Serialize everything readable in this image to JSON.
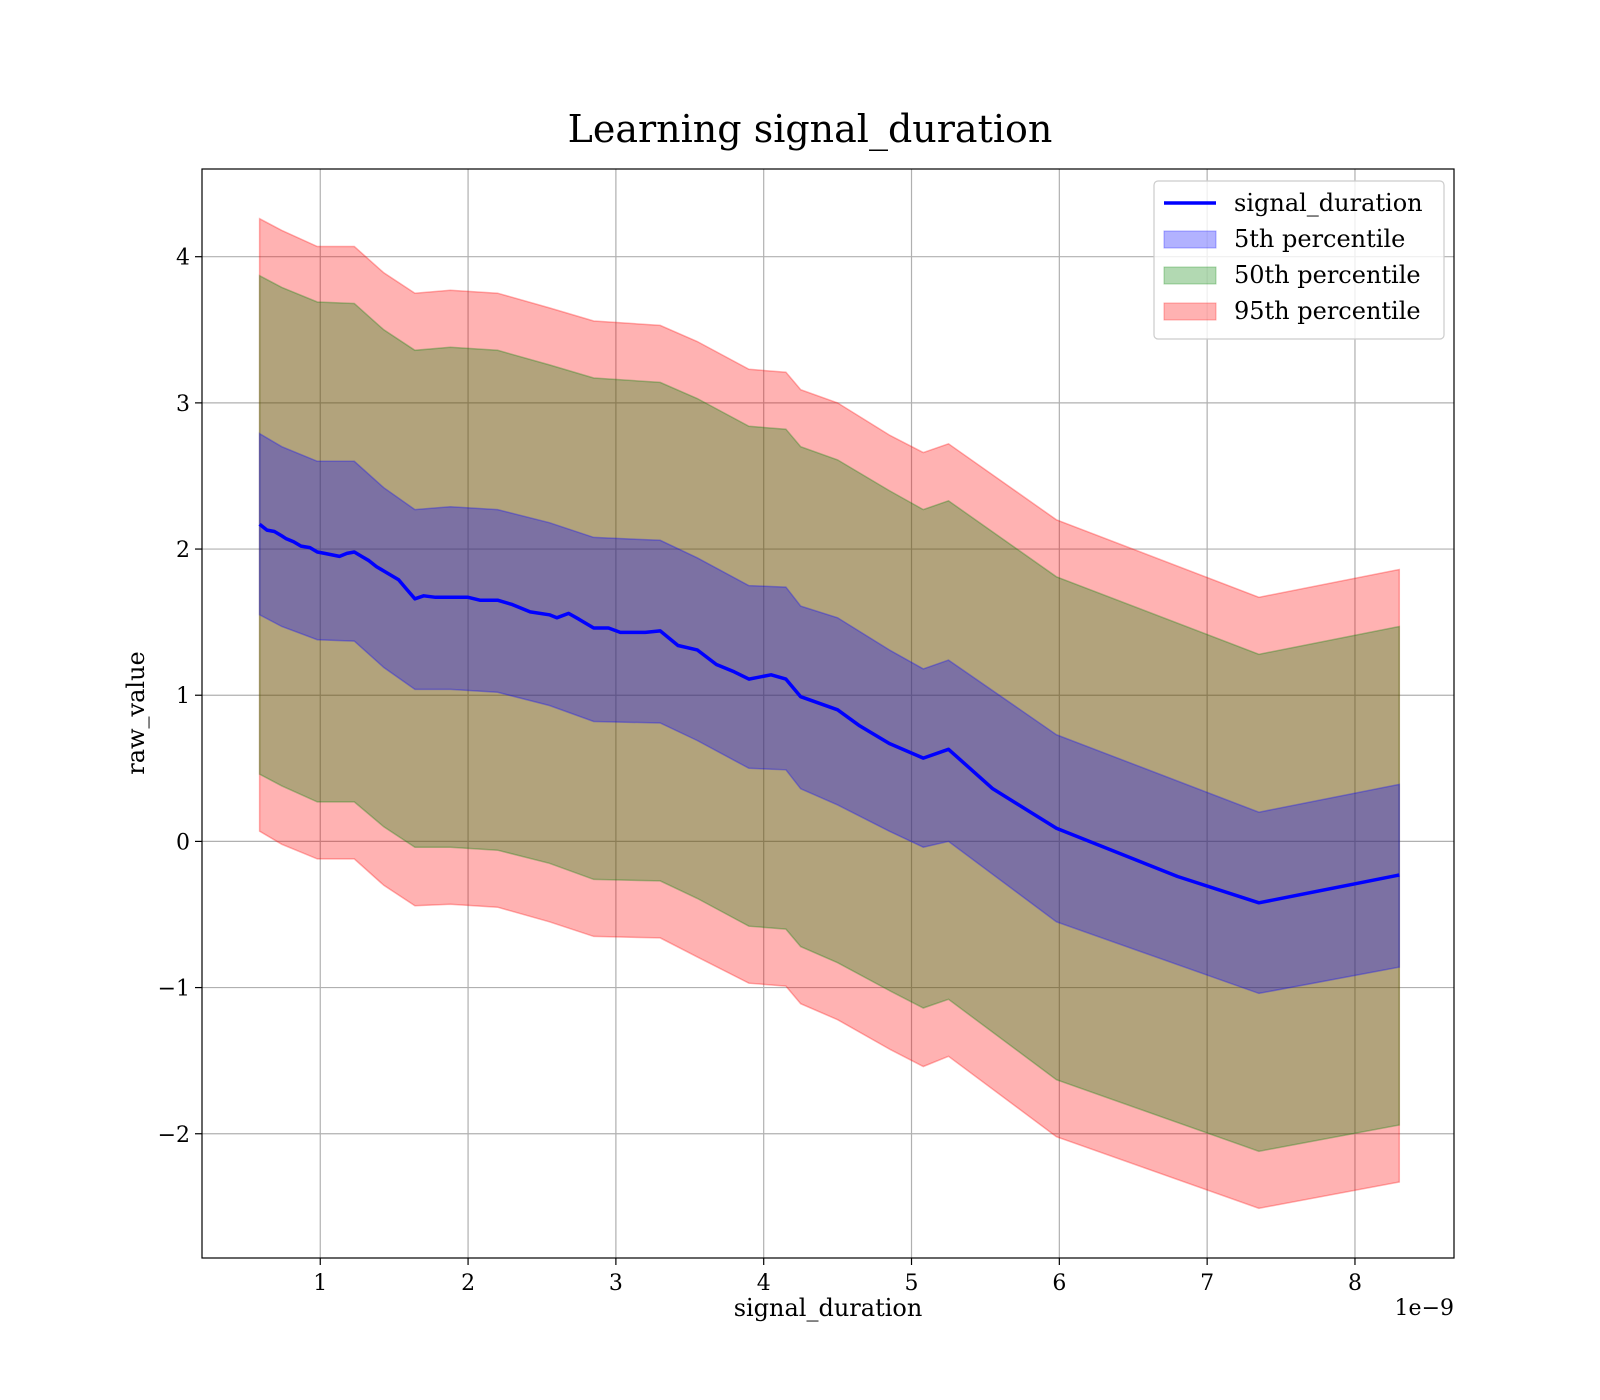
{
  "chart_data": {
    "type": "line",
    "title": "Learning signal_duration",
    "xlabel": "signal_duration",
    "ylabel": "raw_value",
    "x_offset_text": "1e−9",
    "xlim": [
      0.2,
      8.67
    ],
    "ylim": [
      -2.85,
      4.6
    ],
    "x_ticks": [
      1,
      2,
      3,
      4,
      5,
      6,
      7,
      8
    ],
    "y_ticks": [
      -2,
      -1,
      0,
      1,
      2,
      3,
      4
    ],
    "y_tick_labels": [
      "−2",
      "−1",
      "0",
      "1",
      "2",
      "3",
      "4"
    ],
    "grid": true,
    "legend_position": "top-right",
    "series": [
      {
        "name": "signal_duration",
        "kind": "line",
        "color": "#0000ff",
        "x": [
          0.59,
          0.64,
          0.69,
          0.74,
          0.77,
          0.82,
          0.87,
          0.93,
          0.98,
          1.03,
          1.08,
          1.13,
          1.18,
          1.23,
          1.28,
          1.33,
          1.38,
          1.43,
          1.48,
          1.53,
          1.58,
          1.64,
          1.7,
          1.78,
          1.88,
          2.0,
          2.08,
          2.13,
          2.2,
          2.3,
          2.42,
          2.55,
          2.6,
          2.68,
          2.75,
          2.85,
          2.95,
          3.03,
          3.12,
          3.2,
          3.3,
          3.42,
          3.55,
          3.68,
          3.8,
          3.9,
          3.95,
          4.05,
          4.15,
          4.25,
          4.5,
          4.65,
          4.85,
          5.08,
          5.25,
          5.55,
          5.98,
          6.8,
          7.35,
          8.0,
          8.3
        ],
        "values": [
          2.17,
          2.13,
          2.12,
          2.09,
          2.07,
          2.05,
          2.02,
          2.01,
          1.98,
          1.97,
          1.96,
          1.95,
          1.97,
          1.98,
          1.95,
          1.92,
          1.88,
          1.85,
          1.82,
          1.79,
          1.73,
          1.66,
          1.68,
          1.67,
          1.67,
          1.67,
          1.65,
          1.65,
          1.65,
          1.62,
          1.57,
          1.55,
          1.53,
          1.56,
          1.52,
          1.46,
          1.46,
          1.43,
          1.43,
          1.43,
          1.44,
          1.34,
          1.31,
          1.21,
          1.16,
          1.11,
          1.12,
          1.14,
          1.11,
          0.99,
          0.9,
          0.79,
          0.67,
          0.57,
          0.63,
          0.36,
          0.09,
          -0.24,
          -0.42,
          -0.29,
          -0.23
        ]
      }
    ],
    "bands": [
      {
        "name": "5th percentile",
        "color": "#0000ff",
        "alpha": 0.3,
        "x": [
          0.59,
          0.74,
          0.98,
          1.23,
          1.43,
          1.64,
          1.88,
          2.2,
          2.55,
          2.85,
          3.3,
          3.55,
          3.9,
          4.15,
          4.25,
          4.5,
          4.85,
          5.08,
          5.25,
          5.98,
          7.35,
          8.3
        ],
        "lower": [
          1.55,
          1.47,
          1.38,
          1.37,
          1.19,
          1.04,
          1.04,
          1.02,
          0.93,
          0.82,
          0.81,
          0.69,
          0.5,
          0.49,
          0.36,
          0.25,
          0.07,
          -0.04,
          0.0,
          -0.55,
          -1.04,
          -0.86
        ],
        "upper": [
          2.79,
          2.7,
          2.6,
          2.6,
          2.42,
          2.27,
          2.29,
          2.27,
          2.18,
          2.08,
          2.06,
          1.94,
          1.75,
          1.74,
          1.61,
          1.53,
          1.31,
          1.18,
          1.24,
          0.73,
          0.2,
          0.39
        ]
      },
      {
        "name": "50th percentile",
        "color": "#008000",
        "alpha": 0.3,
        "x": [
          0.59,
          0.74,
          0.98,
          1.23,
          1.43,
          1.64,
          1.88,
          2.2,
          2.55,
          2.85,
          3.3,
          3.55,
          3.9,
          4.15,
          4.25,
          4.5,
          4.85,
          5.08,
          5.25,
          5.98,
          7.35,
          8.3
        ],
        "lower": [
          0.46,
          0.38,
          0.27,
          0.27,
          0.1,
          -0.04,
          -0.04,
          -0.06,
          -0.15,
          -0.26,
          -0.27,
          -0.39,
          -0.58,
          -0.6,
          -0.72,
          -0.83,
          -1.02,
          -1.14,
          -1.08,
          -1.63,
          -2.12,
          -1.94
        ],
        "upper": [
          3.87,
          3.79,
          3.69,
          3.68,
          3.5,
          3.36,
          3.38,
          3.36,
          3.26,
          3.17,
          3.14,
          3.03,
          2.84,
          2.82,
          2.7,
          2.61,
          2.4,
          2.27,
          2.33,
          1.81,
          1.28,
          1.47
        ]
      },
      {
        "name": "95th percentile",
        "color": "#ff0000",
        "alpha": 0.3,
        "x": [
          0.59,
          0.74,
          0.98,
          1.23,
          1.43,
          1.64,
          1.88,
          2.2,
          2.55,
          2.85,
          3.3,
          3.55,
          3.9,
          4.15,
          4.25,
          4.5,
          4.85,
          5.08,
          5.25,
          5.98,
          7.35,
          8.3
        ],
        "lower": [
          0.07,
          -0.02,
          -0.12,
          -0.12,
          -0.3,
          -0.44,
          -0.43,
          -0.45,
          -0.55,
          -0.65,
          -0.66,
          -0.79,
          -0.97,
          -0.99,
          -1.11,
          -1.22,
          -1.42,
          -1.54,
          -1.47,
          -2.02,
          -2.51,
          -2.33
        ],
        "upper": [
          4.26,
          4.18,
          4.07,
          4.07,
          3.89,
          3.75,
          3.77,
          3.75,
          3.65,
          3.56,
          3.53,
          3.42,
          3.23,
          3.21,
          3.09,
          3.0,
          2.78,
          2.66,
          2.72,
          2.2,
          1.67,
          1.86
        ]
      }
    ]
  }
}
